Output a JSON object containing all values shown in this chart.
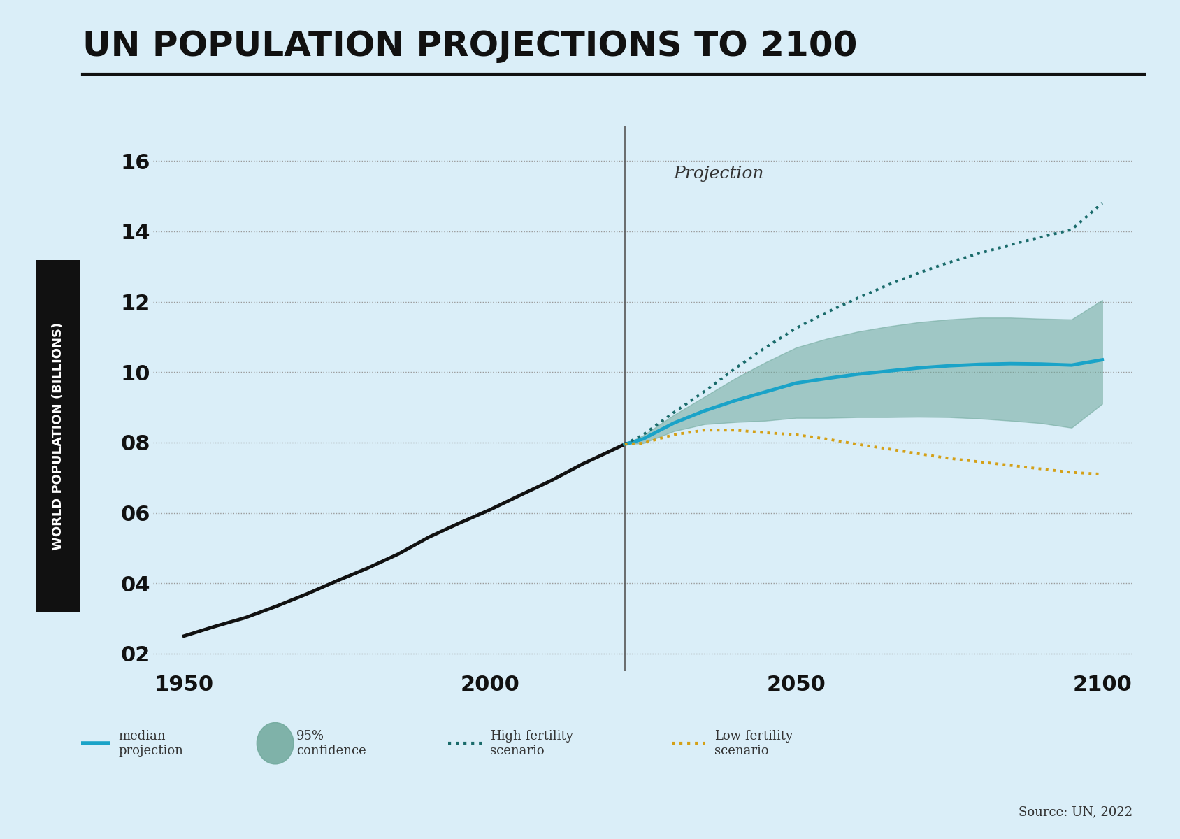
{
  "title": "UN POPULATION PROJECTIONS TO 2100",
  "ylabel": "WORLD POPULATION (BILLIONS)",
  "background_color": "#daeef8",
  "title_fontsize": 36,
  "xlabel_ticks": [
    1950,
    2000,
    2050,
    2100
  ],
  "ytick_labels": [
    "02",
    "04",
    "06",
    "08",
    "10",
    "12",
    "14",
    "16"
  ],
  "ytick_values": [
    2,
    4,
    6,
    8,
    10,
    12,
    14,
    16
  ],
  "ylim": [
    1.5,
    17
  ],
  "xlim": [
    1945,
    2105
  ],
  "projection_start_year": 2022,
  "projection_label": "Projection",
  "historical_years": [
    1950,
    1955,
    1960,
    1965,
    1970,
    1975,
    1980,
    1985,
    1990,
    1995,
    2000,
    2005,
    2010,
    2015,
    2022
  ],
  "historical_pop": [
    2.5,
    2.77,
    3.02,
    3.34,
    3.69,
    4.07,
    4.43,
    4.83,
    5.31,
    5.71,
    6.09,
    6.51,
    6.92,
    7.38,
    7.95
  ],
  "proj_years": [
    2022,
    2025,
    2030,
    2035,
    2040,
    2045,
    2050,
    2055,
    2060,
    2065,
    2070,
    2075,
    2080,
    2085,
    2090,
    2095,
    2100
  ],
  "median_proj": [
    7.95,
    8.1,
    8.55,
    8.9,
    9.19,
    9.44,
    9.69,
    9.82,
    9.94,
    10.03,
    10.12,
    10.18,
    10.22,
    10.24,
    10.23,
    10.2,
    10.35
  ],
  "ci_upper": [
    7.95,
    8.2,
    8.78,
    9.3,
    9.82,
    10.28,
    10.7,
    10.95,
    11.15,
    11.3,
    11.42,
    11.5,
    11.55,
    11.55,
    11.52,
    11.5,
    12.05
  ],
  "ci_lower": [
    7.95,
    7.98,
    8.32,
    8.52,
    8.58,
    8.62,
    8.7,
    8.7,
    8.72,
    8.72,
    8.73,
    8.72,
    8.68,
    8.62,
    8.55,
    8.42,
    9.1
  ],
  "high_fert": [
    7.95,
    8.22,
    8.85,
    9.45,
    10.1,
    10.7,
    11.25,
    11.7,
    12.1,
    12.48,
    12.82,
    13.12,
    13.38,
    13.62,
    13.84,
    14.05,
    14.8
  ],
  "low_fert": [
    7.95,
    7.98,
    8.22,
    8.35,
    8.35,
    8.28,
    8.22,
    8.1,
    7.95,
    7.82,
    7.68,
    7.55,
    7.45,
    7.35,
    7.25,
    7.15,
    7.1
  ],
  "median_color": "#1aa3c8",
  "ci_color": "#6fa89b",
  "ci_alpha": 0.55,
  "high_color": "#1a6b6b",
  "low_color": "#d4a017",
  "hist_color": "#111111",
  "source_text": "Source: UN, 2022"
}
